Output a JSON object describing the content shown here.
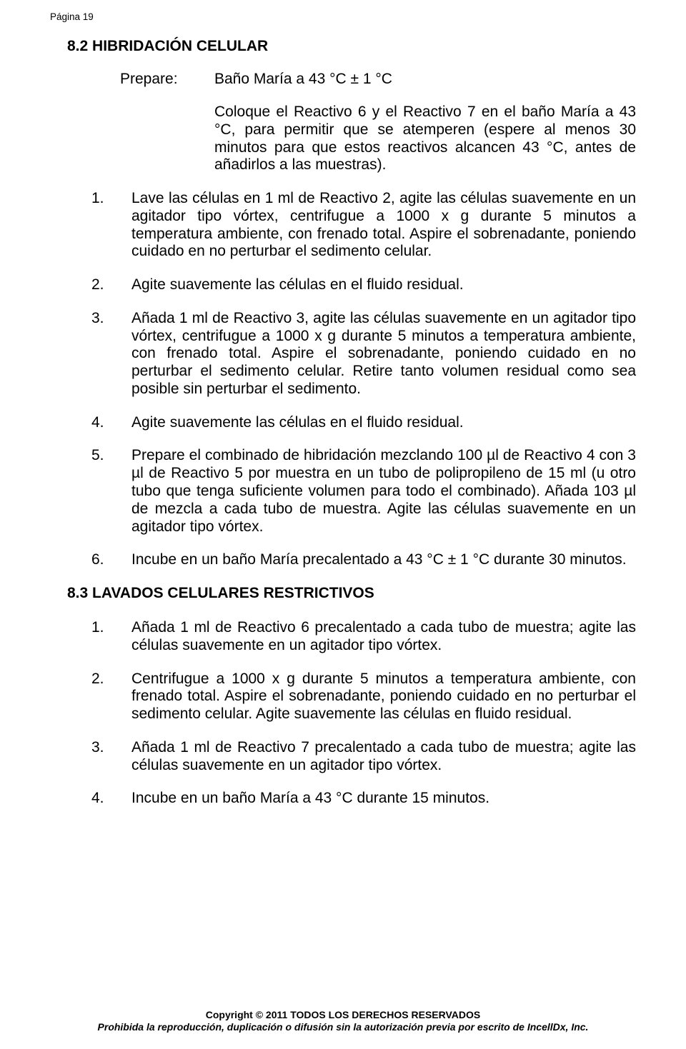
{
  "page_number_label": "Página 19",
  "section_8_2": {
    "title": "8.2 HIBRIDACIÓN CELULAR",
    "prepare_label": "Prepare:",
    "prepare_value": "Baño María a 43 °C ± 1 °C",
    "prepare_paragraph": "Coloque el Reactivo 6 y el Reactivo 7 en el baño María a 43 °C, para permitir que se atemperen (espere al menos 30 minutos para que estos reactivos alcancen 43 °C, antes de añadirlos a las muestras).",
    "steps": [
      {
        "n": "1.",
        "text": "Lave las células en 1 ml de Reactivo 2, agite las células suavemente en un agitador tipo vórtex, centrifugue a 1000 x g durante 5 minutos a temperatura ambiente, con frenado total. Aspire el sobrenadante, poniendo cuidado en no perturbar el sedimento celular."
      },
      {
        "n": "2.",
        "text": "Agite suavemente las células en el fluido residual."
      },
      {
        "n": "3.",
        "text": "Añada 1 ml de Reactivo 3, agite las células suavemente en un agitador tipo vórtex, centrifugue a 1000 x g durante 5 minutos a temperatura ambiente, con frenado total. Aspire el sobrenadante, poniendo cuidado en no perturbar el sedimento celular. Retire tanto volumen residual como sea posible sin perturbar el sedimento."
      },
      {
        "n": "4.",
        "text": "Agite suavemente las células en el fluido residual."
      },
      {
        "n": "5.",
        "text": "Prepare el combinado de hibridación mezclando 100 µl de Reactivo 4 con 3 µl de Reactivo 5 por muestra en un tubo de polipropileno de 15 ml (u otro tubo que tenga suficiente volumen para todo el combinado). Añada 103 µl de mezcla a cada tubo de muestra. Agite las células suavemente en un agitador tipo vórtex."
      },
      {
        "n": "6.",
        "text": "Incube en un baño María precalentado a 43 °C ± 1 °C durante 30 minutos."
      }
    ]
  },
  "section_8_3": {
    "title": "8.3 LAVADOS CELULARES RESTRICTIVOS",
    "steps": [
      {
        "n": "1.",
        "text": "Añada 1 ml de Reactivo 6 precalentado a cada tubo de muestra; agite las células suavemente en un agitador tipo vórtex."
      },
      {
        "n": "2.",
        "text": "Centrifugue a 1000 x g durante 5 minutos a temperatura ambiente, con frenado total. Aspire el sobrenadante, poniendo cuidado en no perturbar el sedimento celular. Agite suavemente las células en fluido residual."
      },
      {
        "n": "3.",
        "text": "Añada 1 ml de Reactivo 7 precalentado a cada tubo de muestra; agite las células suavemente en un agitador tipo vórtex."
      },
      {
        "n": "4.",
        "text": "Incube en un baño María a 43 °C durante 15 minutos."
      }
    ]
  },
  "footer": {
    "line1": "Copyright © 2011 TODOS LOS DERECHOS RESERVADOS",
    "line2": "Prohibida la reproducción, duplicación o difusión sin la autorización previa por escrito de IncellDx, Inc."
  },
  "colors": {
    "background": "#ffffff",
    "text": "#000000"
  },
  "font": {
    "family": "Arial",
    "body_size_pt": 16,
    "page_number_size_pt": 10,
    "footer_size_pt": 10.5
  }
}
